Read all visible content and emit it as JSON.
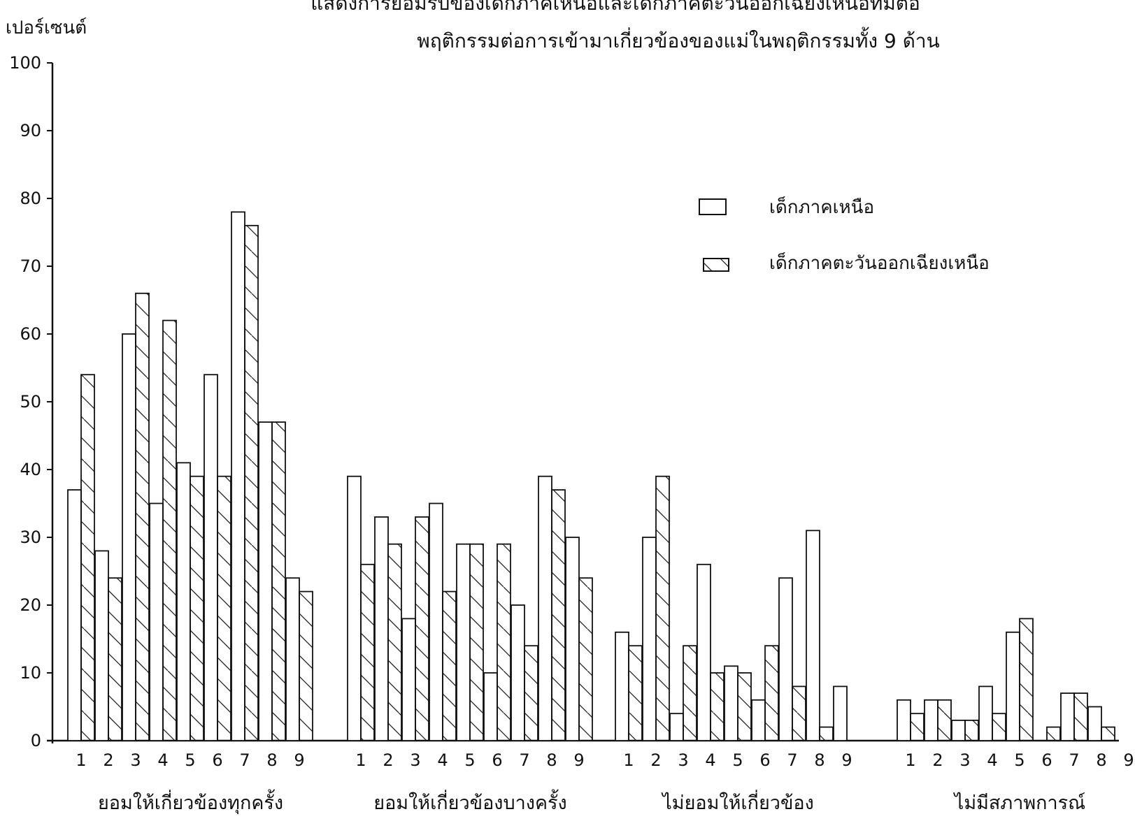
{
  "chart_data": {
    "type": "bar",
    "title_partial": "แสดงการยอมรับของเด็กภาคเหนือและเด็กภาคตะวันออกเฉียงเหนือที่มีต่อ",
    "title": "พฤติกรรมต่อการเข้ามาเกี่ยวข้องของแม่ในพฤติกรรมทั้ง 9 ด้าน",
    "ylabel": "เปอร์เซนต์",
    "ylim": [
      0,
      100
    ],
    "yticks": [
      0,
      10,
      20,
      30,
      40,
      50,
      60,
      70,
      80,
      90,
      100
    ],
    "legend_position": "top-right",
    "grid": false,
    "groups": [
      {
        "label": "ยอมให้เกี่ยวข้องทุกครั้ง",
        "categories": [
          "1",
          "2",
          "3",
          "4",
          "5",
          "6",
          "7",
          "8",
          "9"
        ],
        "series": [
          {
            "name": "เด็กภาคเหนือ",
            "values": [
              37,
              28,
              60,
              35,
              41,
              54,
              78,
              47,
              24
            ]
          },
          {
            "name": "เด็กภาคตะวันออกเฉียงเหนือ",
            "values": [
              54,
              24,
              66,
              62,
              39,
              39,
              76,
              47,
              22
            ]
          }
        ]
      },
      {
        "label": "ยอมให้เกี่ยวข้องบางครั้ง",
        "categories": [
          "1",
          "2",
          "3",
          "4",
          "5",
          "6",
          "7",
          "8",
          "9"
        ],
        "series": [
          {
            "name": "เด็กภาคเหนือ",
            "values": [
              39,
              33,
              18,
              35,
              29,
              10,
              20,
              39,
              30
            ]
          },
          {
            "name": "เด็กภาคตะวันออกเฉียงเหนือ",
            "values": [
              26,
              29,
              33,
              22,
              29,
              29,
              14,
              37,
              24
            ]
          }
        ]
      },
      {
        "label": "ไม่ยอมให้เกี่ยวข้อง",
        "categories": [
          "1",
          "2",
          "3",
          "4",
          "5",
          "6",
          "7",
          "8",
          "9"
        ],
        "series": [
          {
            "name": "เด็กภาคเหนือ",
            "values": [
              16,
              30,
              4,
              26,
              11,
              6,
              24,
              31,
              8
            ]
          },
          {
            "name": "เด็กภาคตะวันออกเฉียงเหนือ",
            "values": [
              14,
              39,
              14,
              10,
              10,
              14,
              8,
              2,
              0
            ]
          }
        ]
      },
      {
        "label": "ไม่มีสภาพการณ์",
        "categories": [
          "1",
          "2",
          "3",
          "4",
          "5",
          "6",
          "7",
          "8",
          "9"
        ],
        "series": [
          {
            "name": "เด็กภาคเหนือ",
            "values": [
              6,
              6,
              3,
              8,
              16,
              0,
              7,
              5,
              0
            ]
          },
          {
            "name": "เด็กภาคตะวันออกเฉียงเหนือ",
            "values": [
              4,
              6,
              3,
              4,
              18,
              2,
              7,
              2,
              0
            ]
          }
        ]
      }
    ]
  }
}
